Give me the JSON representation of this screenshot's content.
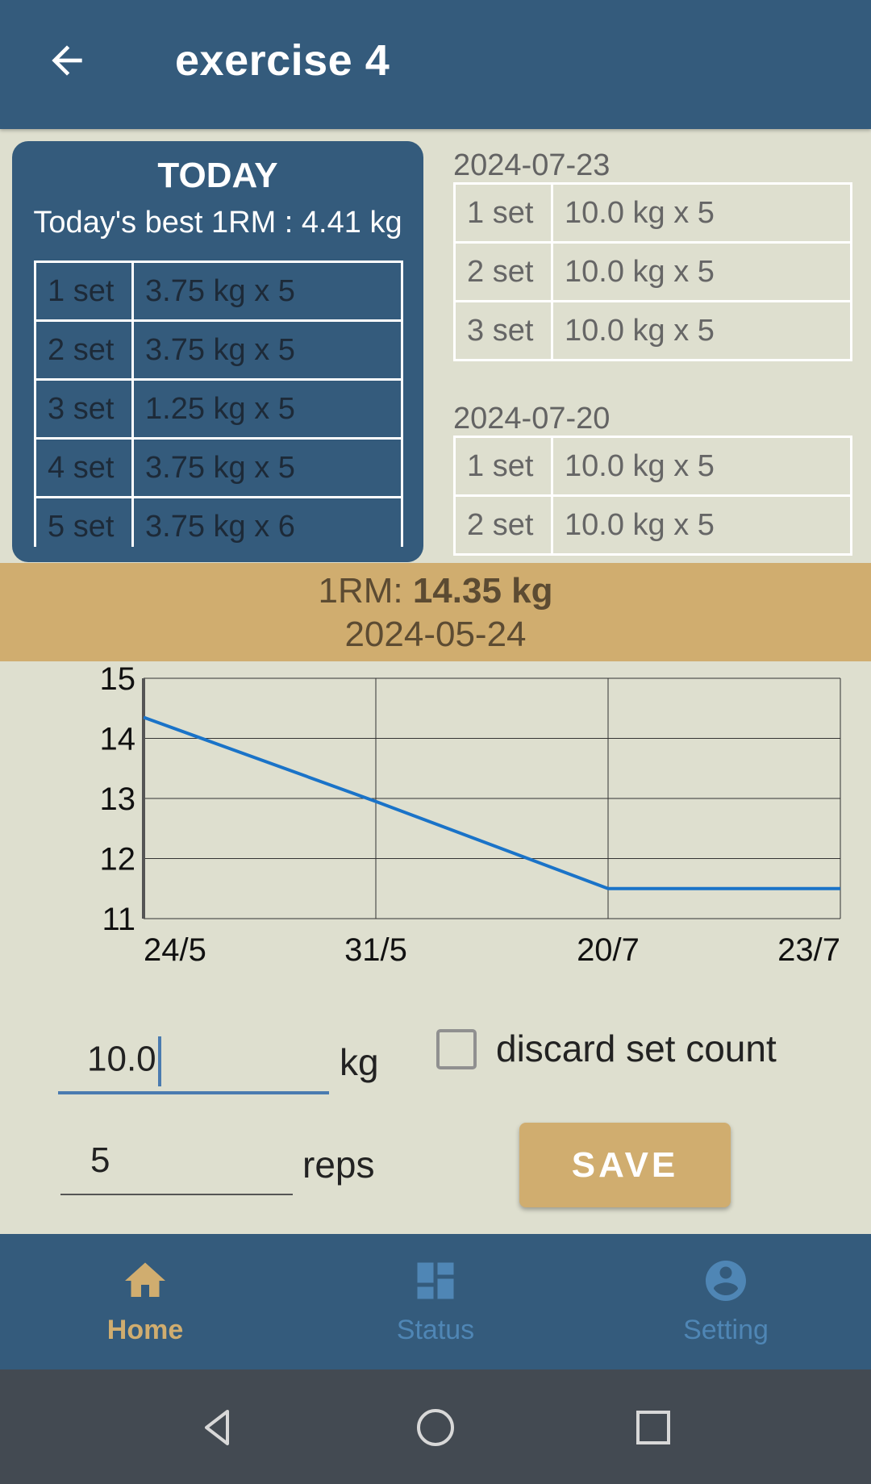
{
  "appbar": {
    "title": "exercise 4",
    "back_icon": "arrow-back-icon"
  },
  "today": {
    "title": "TODAY",
    "best_1rm": "Today's best 1RM : 4.41 kg",
    "sets": [
      {
        "set": "1 set",
        "value": "3.75 kg x 5"
      },
      {
        "set": "2 set",
        "value": "3.75 kg x 5"
      },
      {
        "set": "3 set",
        "value": "1.25 kg x 5"
      },
      {
        "set": "4 set",
        "value": "3.75 kg x 5"
      },
      {
        "set": "5 set",
        "value": "3.75 kg x 6"
      }
    ]
  },
  "history": [
    {
      "date": "2024-07-23",
      "sets": [
        {
          "set": "1 set",
          "value": "10.0 kg x 5"
        },
        {
          "set": "2 set",
          "value": "10.0 kg x 5"
        },
        {
          "set": "3 set",
          "value": "10.0 kg x 5"
        }
      ]
    },
    {
      "date": "2024-07-20",
      "sets": [
        {
          "set": "1 set",
          "value": "10.0 kg x 5"
        },
        {
          "set": "2 set",
          "value": "10.0 kg x 5"
        }
      ]
    }
  ],
  "banner": {
    "label": "1RM: ",
    "value": "14.35 kg",
    "date": "2024-05-24"
  },
  "chart_data": {
    "type": "line",
    "x": [
      "24/5",
      "31/5",
      "20/7",
      "23/7"
    ],
    "y_ticks": [
      "15",
      "14",
      "13",
      "12",
      "11"
    ],
    "ylim": [
      11,
      15
    ],
    "series": [
      {
        "values": [
          14.35,
          12.95,
          11.5,
          11.5
        ],
        "color": "#1a73c8"
      }
    ],
    "grid": true
  },
  "form": {
    "weight_value": "10.0",
    "weight_unit": "kg",
    "reps_value": "5",
    "reps_unit": "reps",
    "discard_label": "discard set count",
    "discard_checked": false,
    "save_label": "SAVE"
  },
  "bottom_nav": {
    "items": [
      {
        "label": "Home",
        "icon": "home-icon",
        "active": true
      },
      {
        "label": "Status",
        "icon": "dashboard-icon",
        "active": false
      },
      {
        "label": "Setting",
        "icon": "account-circle-icon",
        "active": false
      }
    ]
  },
  "colors": {
    "primary": "#345b7c",
    "accent": "#d0ad6f",
    "background": "#dedfcf",
    "line": "#1a73c8"
  }
}
